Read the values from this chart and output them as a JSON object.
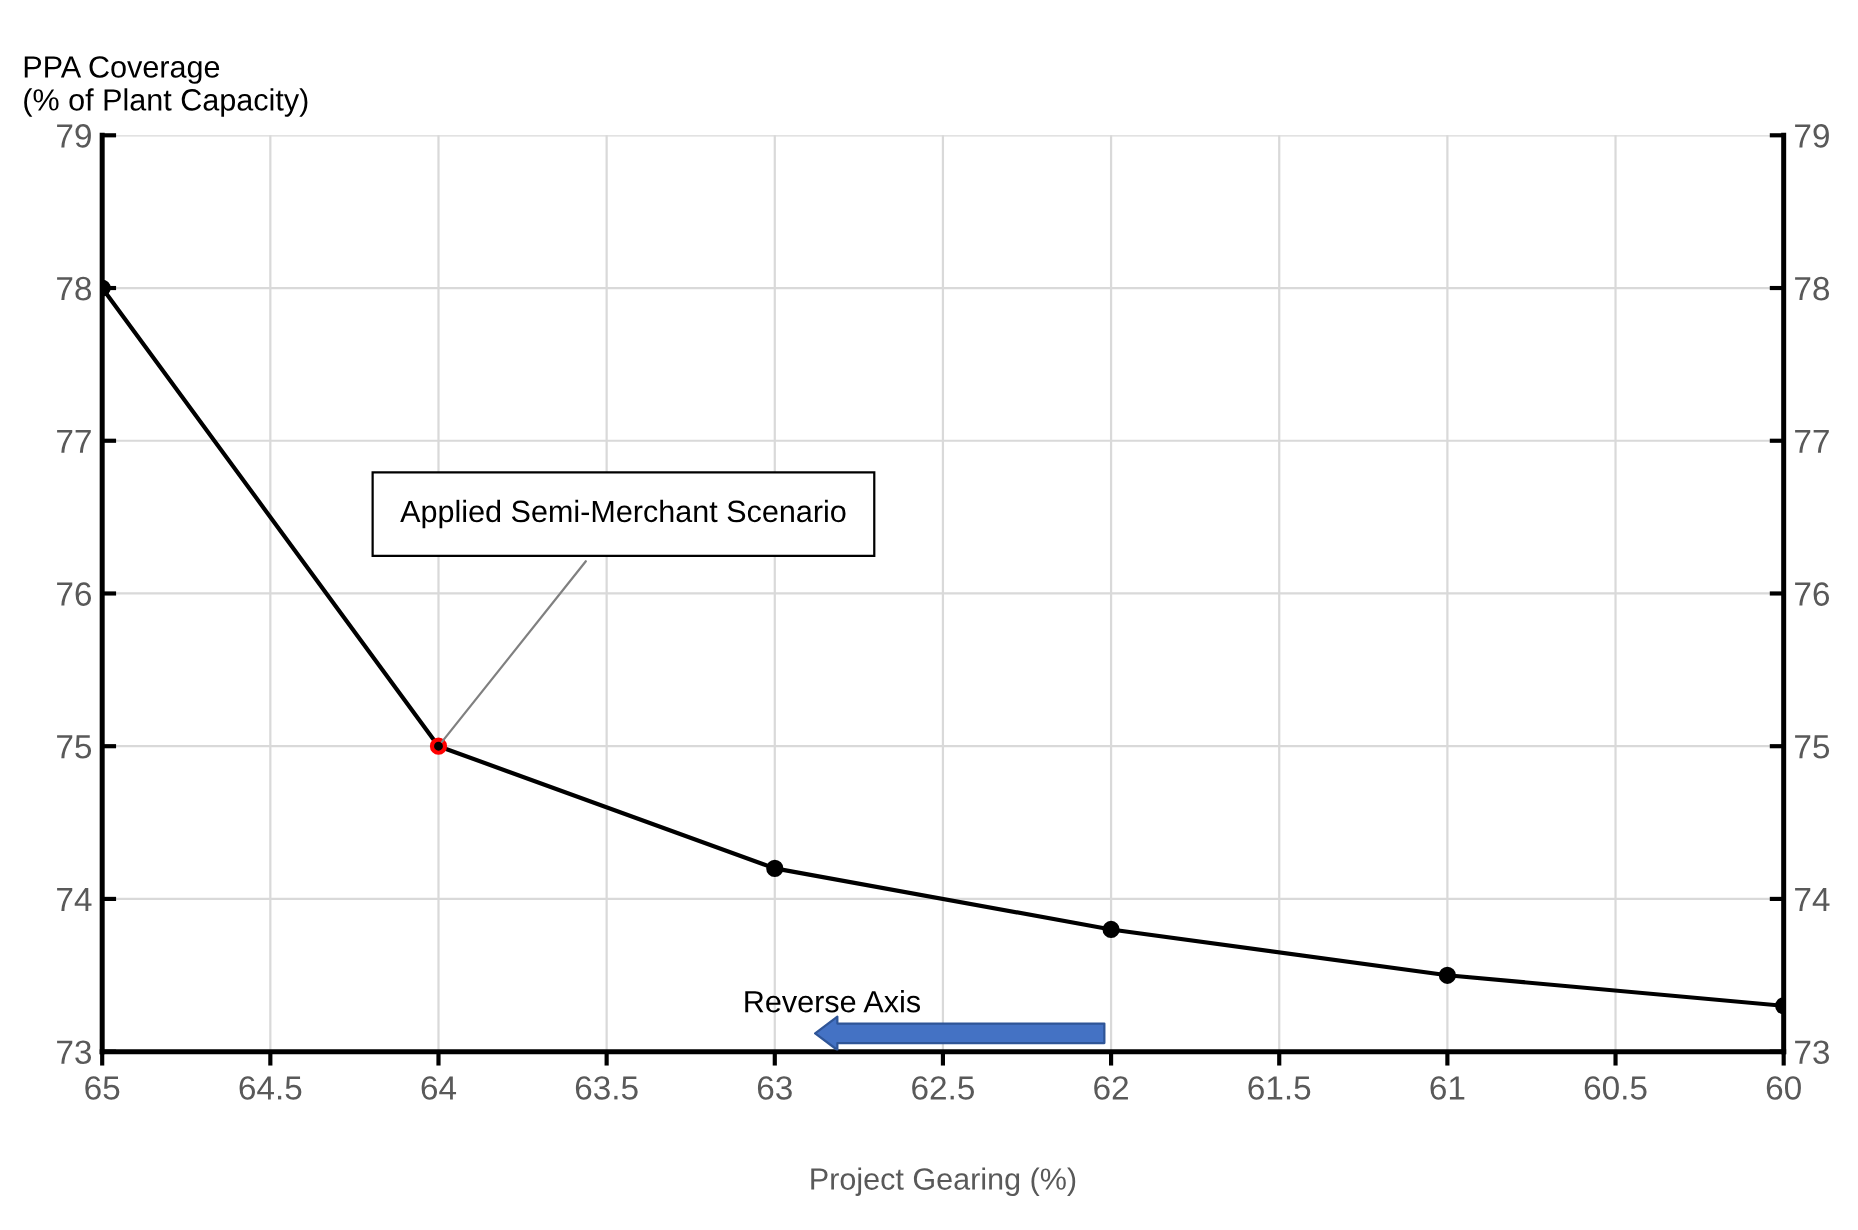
{
  "chart_data": {
    "type": "line",
    "xlabel": "Project Gearing (%)",
    "ylabel": "PPA Coverage\n(% of Plant Capacity)",
    "x": [
      65,
      64,
      63,
      62,
      61,
      60
    ],
    "series": [
      {
        "color": "#000000",
        "values": [
          78,
          75,
          74.2,
          73.8,
          73.5,
          73.3
        ],
        "colors": [
          "#000000",
          "#ff0000",
          "#000000",
          "#000000",
          "#000000",
          "#000000"
        ]
      }
    ],
    "xlim": [
      65,
      60
    ],
    "xticks": [
      65,
      64.5,
      64,
      63.5,
      63,
      62.5,
      62,
      61.5,
      61,
      60.5,
      60
    ],
    "ylim": [
      73,
      79
    ],
    "yticks": [
      73,
      74,
      75,
      76,
      77,
      78,
      79
    ],
    "y2lim": [
      73,
      79
    ],
    "y2ticks": [
      73,
      74,
      75,
      76,
      77,
      78,
      79
    ],
    "annotations": [
      {
        "text": "Applied Semi-Merchant Scenario",
        "x": 64,
        "y": 75
      },
      "Reverse Axis"
    ],
    "grid": true,
    "legend": false,
    "marker": "circle",
    "line_style": "solid"
  }
}
